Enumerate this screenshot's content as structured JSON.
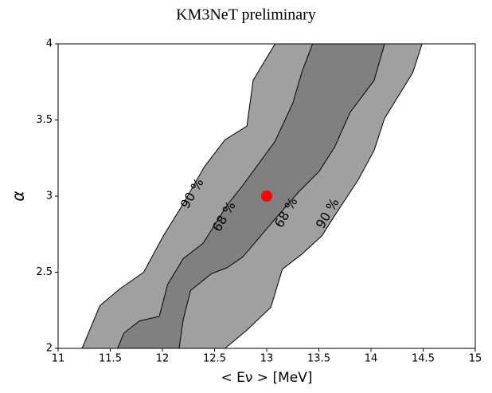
{
  "chart_data": {
    "type": "contour",
    "title": "KM3NeT preliminary",
    "xlabel": "< Eν > [MeV]",
    "ylabel": "α",
    "xlim": [
      11,
      15
    ],
    "ylim": [
      2,
      4
    ],
    "xticks": [
      11,
      11.5,
      12,
      12.5,
      13,
      13.5,
      14,
      14.5,
      15
    ],
    "yticks": [
      2,
      2.5,
      3,
      3.5,
      4
    ],
    "contours": [
      {
        "name": "90 %",
        "color": "#a0a0a0",
        "x": [
          11.23,
          11.4,
          11.59,
          11.82,
          12.01,
          12.2,
          12.4,
          12.6,
          12.81,
          12.87,
          13.08,
          14.49,
          14.4,
          14.13,
          14.03,
          13.88,
          13.65,
          13.53,
          13.34,
          13.15,
          13.04,
          12.81,
          12.6
        ],
        "y": [
          2,
          2.28,
          2.39,
          2.5,
          2.74,
          2.95,
          3.19,
          3.37,
          3.46,
          3.76,
          4,
          4,
          3.81,
          3.51,
          3.3,
          3.11,
          2.87,
          2.74,
          2.62,
          2.52,
          2.27,
          2.12,
          2
        ]
      },
      {
        "name": "68 %",
        "color": "#808080",
        "x": [
          11.57,
          11.63,
          11.78,
          11.97,
          12.05,
          12.2,
          12.39,
          12.62,
          12.77,
          13.08,
          13.25,
          13.34,
          13.44,
          14.13,
          14.03,
          13.8,
          13.65,
          13.5,
          13.31,
          13.08,
          12.92,
          12.77,
          12.62,
          12.47,
          12.27,
          12.2,
          12.16
        ],
        "y": [
          2,
          2.1,
          2.18,
          2.21,
          2.42,
          2.59,
          2.69,
          2.94,
          3.07,
          3.36,
          3.61,
          3.82,
          4,
          4,
          3.76,
          3.55,
          3.32,
          3.16,
          3.03,
          2.85,
          2.72,
          2.6,
          2.53,
          2.49,
          2.38,
          2.19,
          2
        ]
      }
    ],
    "best_fit": {
      "x": 13,
      "y": 3,
      "color": "#ff0000"
    }
  }
}
